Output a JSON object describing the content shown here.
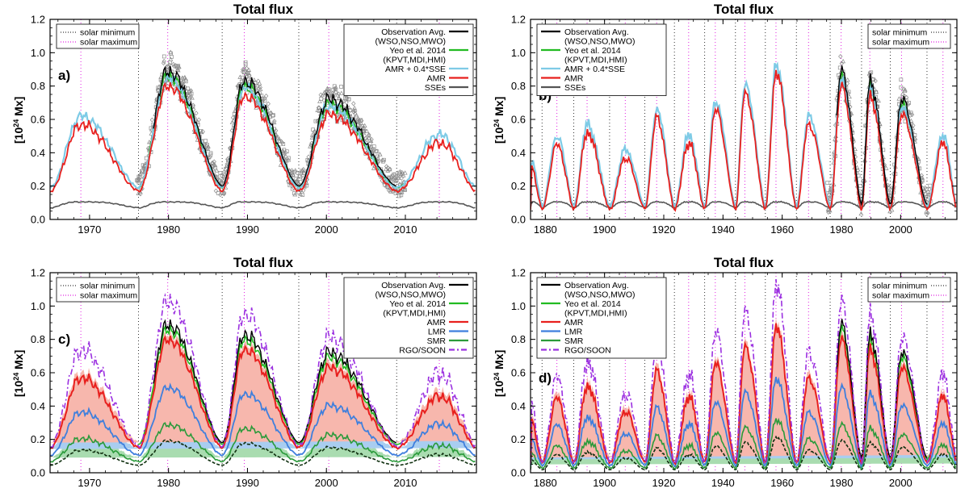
{
  "figure_title": "Total flux",
  "chart_data": [
    {
      "id": "a",
      "panel_label": "a)",
      "type": "line",
      "title": "Total flux",
      "ylabel": "[10^24 Mx]",
      "xlim": [
        1965,
        2019
      ],
      "ylim": [
        0.0,
        1.2
      ],
      "xticks": [
        1970,
        1980,
        1990,
        2000,
        2010
      ],
      "yticks": [
        0.0,
        0.2,
        0.4,
        0.6,
        0.8,
        1.0,
        1.2
      ],
      "solar_minimum": [
        1976.2,
        1986.8,
        1996.5,
        2008.9
      ],
      "solar_maximum": [
        1968.9,
        1979.9,
        1989.6,
        2000.3,
        2014.3
      ],
      "cycle_min": [
        1965.0,
        1976.2,
        1986.8,
        1996.5,
        2008.9,
        2019.0
      ],
      "cycle_max": [
        1968.9,
        1979.9,
        1989.6,
        2000.3,
        2014.3
      ],
      "cycle_amp": [
        0.57,
        0.8,
        0.74,
        0.63,
        0.46
      ],
      "base_flux": 0.17,
      "obs_range": [
        1976.0,
        2010.0
      ],
      "series_names": [
        "AMR",
        "AMR + 0.4*SSE",
        "Yeo et al. 2014",
        "Observation Avg.",
        "SSEs"
      ],
      "legend_minmax": {
        "position": "top-left",
        "entries": [
          "solar minimum",
          "solar maximum"
        ]
      },
      "legend_series": {
        "position": "top-right",
        "entries": [
          {
            "lines": [
              "Observation Avg.",
              "(WSO,NSO,MWO)"
            ],
            "color": "#000000",
            "dash": ""
          },
          {
            "lines": [
              "Yeo et al. 2014",
              "(KPVT,MDI,HMI)"
            ],
            "color": "#22bb22",
            "dash": ""
          },
          {
            "lines": [
              "AMR + 0.4*SSE"
            ],
            "color": "#7ecbe6",
            "dash": ""
          },
          {
            "lines": [
              "AMR"
            ],
            "color": "#e8201e",
            "dash": ""
          },
          {
            "lines": [
              "SSEs"
            ],
            "color": "#555555",
            "dash": ""
          }
        ]
      }
    },
    {
      "id": "b",
      "panel_label": "b)",
      "type": "line",
      "title": "Total flux",
      "ylabel": "[10^24 Mx]",
      "xlim": [
        1875,
        2019
      ],
      "ylim": [
        0.0,
        1.2
      ],
      "xticks": [
        1880,
        1900,
        1920,
        1940,
        1960,
        1980,
        2000
      ],
      "yticks": [
        0.0,
        0.2,
        0.4,
        0.6,
        0.8,
        1.0,
        1.2
      ],
      "solar_minimum": [
        1878.9,
        1889.6,
        1901.7,
        1913.6,
        1923.6,
        1933.8,
        1944.2,
        1954.3,
        1964.8,
        1976.2,
        1986.8,
        1996.5,
        2008.9
      ],
      "solar_maximum": [
        1883.9,
        1894.1,
        1907.0,
        1917.6,
        1928.4,
        1937.4,
        1947.4,
        1957.9,
        1968.9,
        1979.9,
        1989.6,
        2000.3,
        2014.3
      ],
      "cycle_min": [
        1875.0,
        1878.9,
        1889.6,
        1901.7,
        1913.6,
        1923.6,
        1933.8,
        1944.2,
        1954.3,
        1964.8,
        1976.2,
        1986.8,
        1996.5,
        2008.9,
        2019.0
      ],
      "cycle_max": [
        1875.0,
        1883.9,
        1894.1,
        1907.0,
        1917.6,
        1928.4,
        1937.4,
        1947.4,
        1957.9,
        1968.9,
        1979.9,
        1989.6,
        2000.3,
        2014.3
      ],
      "cycle_amp": [
        0.3,
        0.45,
        0.52,
        0.37,
        0.61,
        0.46,
        0.66,
        0.76,
        0.88,
        0.57,
        0.8,
        0.74,
        0.63,
        0.46
      ],
      "base_flux": 0.06,
      "obs_range": [
        1975.0,
        2010.0
      ],
      "series_names": [
        "AMR",
        "AMR + 0.4*SSE",
        "Yeo et al. 2014",
        "Observation Avg.",
        "SSEs"
      ],
      "legend_minmax": {
        "position": "top-right",
        "entries": [
          "solar minimum",
          "solar maximum"
        ]
      },
      "legend_series": {
        "position": "top-left",
        "entries": [
          {
            "lines": [
              "Observation Avg.",
              "(WSO,NSO,MWO)"
            ],
            "color": "#000000",
            "dash": ""
          },
          {
            "lines": [
              "Yeo et al. 2014",
              "(KPVT,MDI,HMI)"
            ],
            "color": "#22bb22",
            "dash": ""
          },
          {
            "lines": [
              "AMR + 0.4*SSE"
            ],
            "color": "#7ecbe6",
            "dash": ""
          },
          {
            "lines": [
              "AMR"
            ],
            "color": "#e8201e",
            "dash": ""
          },
          {
            "lines": [
              "SSEs"
            ],
            "color": "#555555",
            "dash": ""
          }
        ]
      }
    },
    {
      "id": "c",
      "panel_label": "c)",
      "type": "line",
      "title": "Total flux",
      "ylabel": "[10^24 Mx]",
      "xlim": [
        1965,
        2019
      ],
      "ylim": [
        0.0,
        1.2
      ],
      "xticks": [
        1970,
        1980,
        1990,
        2000,
        2010
      ],
      "yticks": [
        0.0,
        0.2,
        0.4,
        0.6,
        0.8,
        1.0,
        1.2
      ],
      "solar_minimum": [
        1976.2,
        1986.8,
        1996.5,
        2008.9
      ],
      "solar_maximum": [
        1968.9,
        1979.9,
        1989.6,
        2000.3,
        2014.3
      ],
      "cycle_min": [
        1965.0,
        1976.2,
        1986.8,
        1996.5,
        2008.9,
        2019.0
      ],
      "cycle_max": [
        1968.9,
        1979.9,
        1989.6,
        2000.3,
        2014.3
      ],
      "cycle_amp": [
        0.57,
        0.8,
        0.74,
        0.63,
        0.46
      ],
      "base_flux": 0.15,
      "obs_range": [
        1976.0,
        2010.0
      ],
      "series_names": [
        "RGO/SOON",
        "AMR",
        "LMR",
        "SMR",
        "Yeo et al. 2014",
        "Observation Avg."
      ],
      "legend_minmax": {
        "position": "top-left",
        "entries": [
          "solar minimum",
          "solar maximum"
        ]
      },
      "legend_series": {
        "position": "top-right",
        "entries": [
          {
            "lines": [
              "Observation Avg.",
              "(WSO,NSO,MWO)"
            ],
            "color": "#000000",
            "dash": ""
          },
          {
            "lines": [
              "Yeo et al. 2014",
              "(KPVT,MDI,HMI)"
            ],
            "color": "#22bb22",
            "dash": ""
          },
          {
            "lines": [
              "AMR"
            ],
            "color": "#e8201e",
            "dash": ""
          },
          {
            "lines": [
              "LMR"
            ],
            "color": "#3f7fdd",
            "dash": ""
          },
          {
            "lines": [
              "SMR"
            ],
            "color": "#2a9a3a",
            "dash": ""
          },
          {
            "lines": [
              "RGO/SOON"
            ],
            "color": "#9b30e0",
            "dash": "7,3,2,3"
          }
        ]
      }
    },
    {
      "id": "d",
      "panel_label": "d)",
      "type": "line",
      "title": "Total flux",
      "ylabel": "[10^24 Mx]",
      "xlim": [
        1875,
        2019
      ],
      "ylim": [
        0.0,
        1.2
      ],
      "xticks": [
        1880,
        1900,
        1920,
        1940,
        1960,
        1980,
        2000
      ],
      "yticks": [
        0.0,
        0.2,
        0.4,
        0.6,
        0.8,
        1.0,
        1.2
      ],
      "solar_minimum": [
        1878.9,
        1889.6,
        1901.7,
        1913.6,
        1923.6,
        1933.8,
        1944.2,
        1954.3,
        1964.8,
        1976.2,
        1986.8,
        1996.5,
        2008.9
      ],
      "solar_maximum": [
        1883.9,
        1894.1,
        1907.0,
        1917.6,
        1928.4,
        1937.4,
        1947.4,
        1957.9,
        1968.9,
        1979.9,
        1989.6,
        2000.3,
        2014.3
      ],
      "cycle_min": [
        1875.0,
        1878.9,
        1889.6,
        1901.7,
        1913.6,
        1923.6,
        1933.8,
        1944.2,
        1954.3,
        1964.8,
        1976.2,
        1986.8,
        1996.5,
        2008.9,
        2019.0
      ],
      "cycle_max": [
        1875.0,
        1883.9,
        1894.1,
        1907.0,
        1917.6,
        1928.4,
        1937.4,
        1947.4,
        1957.9,
        1968.9,
        1979.9,
        1989.6,
        2000.3,
        2014.3
      ],
      "cycle_amp": [
        0.3,
        0.45,
        0.52,
        0.37,
        0.61,
        0.46,
        0.66,
        0.76,
        0.88,
        0.57,
        0.8,
        0.74,
        0.63,
        0.46
      ],
      "base_flux": 0.06,
      "obs_range": [
        1976.0,
        2010.0
      ],
      "series_names": [
        "RGO/SOON",
        "AMR",
        "LMR",
        "SMR",
        "Yeo et al. 2014",
        "Observation Avg."
      ],
      "legend_minmax": {
        "position": "top-right",
        "entries": [
          "solar minimum",
          "solar maximum"
        ]
      },
      "legend_series": {
        "position": "top-left",
        "entries": [
          {
            "lines": [
              "Observation Avg.",
              "(WSO,NSO,MWO)"
            ],
            "color": "#000000",
            "dash": ""
          },
          {
            "lines": [
              "Yeo et al. 2014",
              "(KPVT,MDI,HMI)"
            ],
            "color": "#22bb22",
            "dash": ""
          },
          {
            "lines": [
              "AMR"
            ],
            "color": "#e8201e",
            "dash": ""
          },
          {
            "lines": [
              "LMR"
            ],
            "color": "#3f7fdd",
            "dash": ""
          },
          {
            "lines": [
              "SMR"
            ],
            "color": "#2a9a3a",
            "dash": ""
          },
          {
            "lines": [
              "RGO/SOON"
            ],
            "color": "#9b30e0",
            "dash": "7,3,2,3"
          }
        ]
      }
    }
  ],
  "colors": {
    "amr": "#e8201e",
    "amr_band": "#f7b7ad",
    "amr_sse": "#7ecbe6",
    "yeo": "#22bb22",
    "obs": "#000000",
    "sse": "#555555",
    "lmr": "#3f7fdd",
    "lmr_band": "#a9cdf0",
    "smr": "#2a9a3a",
    "smr_band": "#a9dcb0",
    "rgo": "#9b30e0",
    "black_dash": "#103010",
    "min_line": "#333333",
    "max_line": "#e020e0"
  }
}
